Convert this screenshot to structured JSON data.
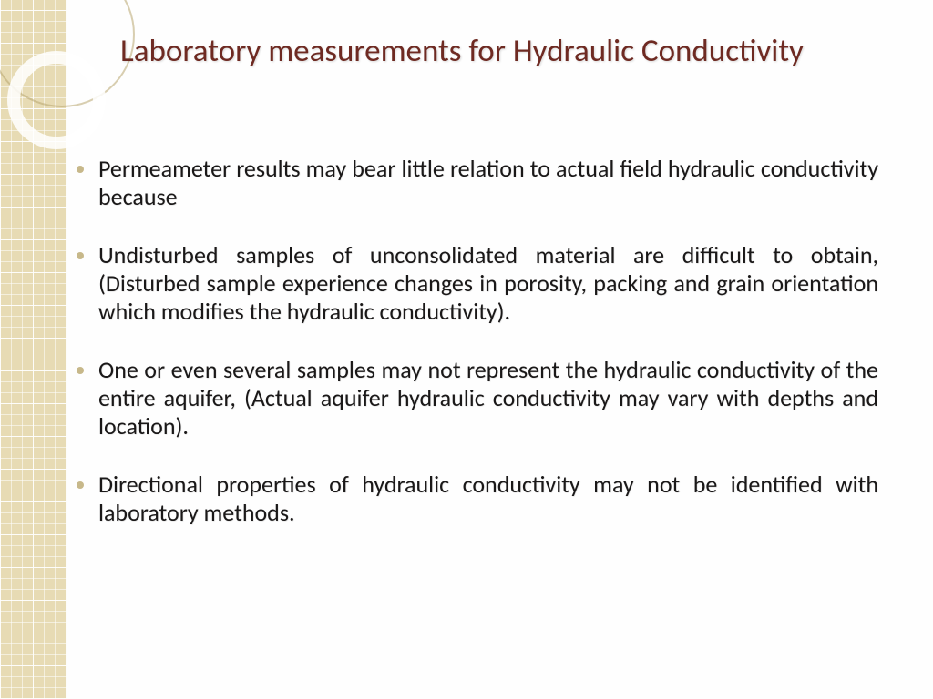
{
  "slide": {
    "title": "Laboratory measurements for Hydraulic Conductivity",
    "bullets": [
      "Permeameter results may bear little relation to actual field hydraulic conductivity because",
      "Undisturbed samples of unconsolidated material are difficult to obtain, (Disturbed sample experience changes in porosity, packing and grain orientation which modifies the hydraulic conductivity).",
      "One or even several samples may not represent the hydraulic conductivity of the entire aquifer, (Actual aquifer hydraulic conductivity may vary with depths and location).",
      "Directional properties of hydraulic conductivity may not be identified with laboratory methods."
    ]
  },
  "theme": {
    "title_color": "#6e2a22",
    "bullet_color": "#c7b88a",
    "body_text_color": "#1a1818",
    "sidebar_fill": "#e7dbb4",
    "title_fontsize_pt": 26,
    "body_fontsize_pt": 20,
    "background_color": "#fefefe"
  }
}
